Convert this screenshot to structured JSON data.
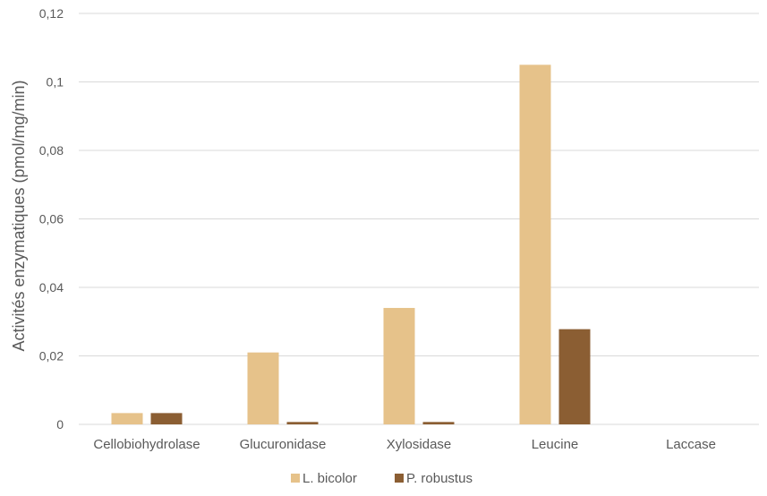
{
  "chart_data": {
    "type": "bar",
    "title": "",
    "xlabel": "",
    "ylabel": "Activités enzymatiques (pmol/mg/min)",
    "ylim": [
      0,
      0.12
    ],
    "yticks": [
      0,
      0.02,
      0.04,
      0.06,
      0.08,
      0.1,
      0.12
    ],
    "ytick_labels": [
      "0",
      "0,02",
      "0,04",
      "0,06",
      "0,08",
      "0,1",
      "0,12"
    ],
    "categories": [
      "Cellobiohydrolase",
      "Glucuronidase",
      "Xylosidase",
      "Leucine",
      "Laccase"
    ],
    "series": [
      {
        "name": "L. bicolor",
        "color": "#E6C28A",
        "values": [
          0.0033,
          0.021,
          0.034,
          0.105,
          0
        ]
      },
      {
        "name": "P. robustus",
        "color": "#8B5E33",
        "values": [
          0.0033,
          0.0007,
          0.0007,
          0.0278,
          0
        ]
      }
    ],
    "grid": true,
    "legend_position": "bottom",
    "gridline_color": "#D9D9D9"
  }
}
